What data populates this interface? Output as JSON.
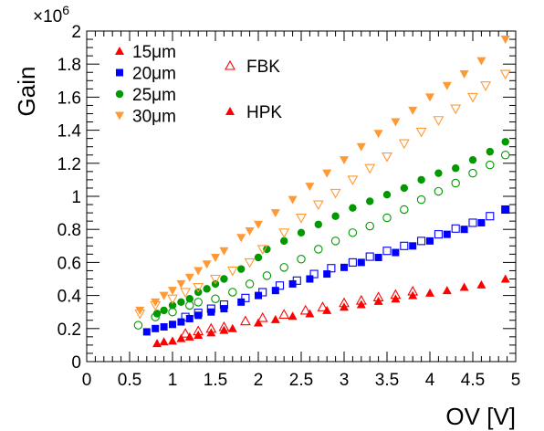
{
  "chart_data": {
    "type": "scatter",
    "xlabel": "OV [V]",
    "ylabel": "Gain",
    "y_multiplier": {
      "base": "×10",
      "exponent": "6"
    },
    "xlim": [
      0,
      5
    ],
    "ylim": [
      0,
      2
    ],
    "x_ticks": [
      "0",
      "0.5",
      "1",
      "1.5",
      "2",
      "2.5",
      "3",
      "3.5",
      "4",
      "4.5",
      "5"
    ],
    "y_ticks": [
      "0",
      "0.2",
      "0.4",
      "0.6",
      "0.8",
      "1",
      "1.2",
      "1.4",
      "1.6",
      "1.8",
      "2"
    ],
    "grid": false,
    "colors": {
      "15um": "#ff0000",
      "20um": "#0000ff",
      "25um": "#009900",
      "30um": "#ff9933"
    },
    "legend": {
      "sizes": [
        {
          "label": "15μm",
          "color": "#ff0000",
          "marker": "triangle-up"
        },
        {
          "label": "20μm",
          "color": "#0000ff",
          "marker": "square"
        },
        {
          "label": "25μm",
          "color": "#009900",
          "marker": "circle"
        },
        {
          "label": "30μm",
          "color": "#ff9933",
          "marker": "triangle-down"
        }
      ],
      "types": [
        {
          "label": "FBK",
          "fill": "open",
          "color": "#ff0000"
        },
        {
          "label": "HPK",
          "fill": "filled",
          "color": "#ff0000"
        }
      ]
    },
    "series": [
      {
        "size": "15μm",
        "vendor": "FBK",
        "marker": "triangle-up",
        "fill": "open",
        "color": "#ff0000",
        "x": [
          1.15,
          1.3,
          1.45,
          1.6,
          1.85,
          2.05,
          2.3,
          2.55,
          2.75,
          3.0,
          3.2,
          3.4,
          3.6,
          3.8
        ],
        "y": [
          0.17,
          0.185,
          0.2,
          0.21,
          0.245,
          0.265,
          0.285,
          0.31,
          0.33,
          0.355,
          0.37,
          0.39,
          0.405,
          0.425
        ]
      },
      {
        "size": "15μm",
        "vendor": "HPK",
        "marker": "triangle-up",
        "fill": "filled",
        "color": "#ff0000",
        "x": [
          0.82,
          0.9,
          1.0,
          1.1,
          1.2,
          1.3,
          1.45,
          1.6,
          1.7,
          2.0,
          2.2,
          2.4,
          2.6,
          2.8,
          3.0,
          3.2,
          3.4,
          3.6,
          3.8,
          4.0,
          4.2,
          4.4,
          4.6,
          4.88
        ],
        "y": [
          0.11,
          0.12,
          0.125,
          0.14,
          0.15,
          0.16,
          0.175,
          0.19,
          0.2,
          0.235,
          0.255,
          0.275,
          0.29,
          0.31,
          0.33,
          0.345,
          0.365,
          0.38,
          0.4,
          0.415,
          0.43,
          0.45,
          0.465,
          0.5
        ]
      },
      {
        "size": "20μm",
        "vendor": "FBK",
        "marker": "square",
        "fill": "open",
        "color": "#0000ff",
        "x": [
          1.15,
          1.3,
          1.45,
          1.6,
          1.85,
          2.05,
          2.25,
          2.45,
          2.65,
          2.85,
          3.1,
          3.3,
          3.5,
          3.7,
          3.9,
          4.1,
          4.3,
          4.5,
          4.7,
          4.88
        ],
        "y": [
          0.27,
          0.295,
          0.32,
          0.345,
          0.385,
          0.42,
          0.46,
          0.49,
          0.53,
          0.565,
          0.6,
          0.635,
          0.67,
          0.7,
          0.73,
          0.77,
          0.805,
          0.84,
          0.88,
          0.92
        ]
      },
      {
        "size": "20μm",
        "vendor": "HPK",
        "marker": "square",
        "fill": "filled",
        "color": "#0000ff",
        "x": [
          0.7,
          0.8,
          0.9,
          1.0,
          1.1,
          1.2,
          1.3,
          1.45,
          1.6,
          1.8,
          2.0,
          2.2,
          2.4,
          2.6,
          2.8,
          3.0,
          3.2,
          3.4,
          3.6,
          3.8,
          4.0,
          4.2,
          4.4,
          4.6,
          4.88
        ],
        "y": [
          0.18,
          0.2,
          0.21,
          0.225,
          0.24,
          0.26,
          0.28,
          0.3,
          0.32,
          0.36,
          0.4,
          0.43,
          0.47,
          0.5,
          0.53,
          0.57,
          0.6,
          0.63,
          0.66,
          0.7,
          0.73,
          0.77,
          0.8,
          0.84,
          0.92
        ]
      },
      {
        "size": "25μm",
        "vendor": "FBK",
        "marker": "circle",
        "fill": "open",
        "color": "#009900",
        "x": [
          0.6,
          0.8,
          1.0,
          1.2,
          1.3,
          1.5,
          1.7,
          1.9,
          2.1,
          2.3,
          2.5,
          2.7,
          2.9,
          3.1,
          3.3,
          3.5,
          3.7,
          3.9,
          4.1,
          4.3,
          4.5,
          4.7,
          4.88
        ],
        "y": [
          0.22,
          0.27,
          0.3,
          0.34,
          0.36,
          0.38,
          0.42,
          0.47,
          0.52,
          0.57,
          0.62,
          0.68,
          0.73,
          0.78,
          0.82,
          0.87,
          0.92,
          0.98,
          1.03,
          1.08,
          1.14,
          1.19,
          1.25
        ]
      },
      {
        "size": "25μm",
        "vendor": "HPK",
        "marker": "circle",
        "fill": "filled",
        "color": "#009900",
        "x": [
          0.82,
          0.9,
          1.0,
          1.1,
          1.2,
          1.3,
          1.4,
          1.5,
          1.6,
          1.8,
          2.0,
          2.1,
          2.3,
          2.5,
          2.7,
          2.9,
          3.1,
          3.3,
          3.5,
          3.7,
          3.9,
          4.1,
          4.3,
          4.5,
          4.7,
          4.88
        ],
        "y": [
          0.29,
          0.31,
          0.34,
          0.36,
          0.38,
          0.42,
          0.44,
          0.47,
          0.5,
          0.56,
          0.63,
          0.68,
          0.73,
          0.78,
          0.83,
          0.88,
          0.93,
          0.97,
          1.01,
          1.05,
          1.1,
          1.14,
          1.17,
          1.22,
          1.27,
          1.33
        ]
      },
      {
        "size": "30μm",
        "vendor": "FBK",
        "marker": "triangle-down",
        "fill": "open",
        "color": "#ff9933",
        "x": [
          0.62,
          0.8,
          1.0,
          1.15,
          1.3,
          1.5,
          1.7,
          1.9,
          2.05,
          2.3,
          2.5,
          2.7,
          2.9,
          3.1,
          3.3,
          3.5,
          3.7,
          3.9,
          4.1,
          4.3,
          4.5,
          4.65,
          4.88
        ],
        "y": [
          0.29,
          0.34,
          0.38,
          0.42,
          0.45,
          0.5,
          0.55,
          0.6,
          0.68,
          0.78,
          0.87,
          0.95,
          1.02,
          1.1,
          1.17,
          1.24,
          1.32,
          1.39,
          1.46,
          1.53,
          1.6,
          1.67,
          1.74
        ]
      },
      {
        "size": "30μm",
        "vendor": "HPK",
        "marker": "triangle-down",
        "fill": "filled",
        "color": "#ff9933",
        "x": [
          0.62,
          0.8,
          0.9,
          1.0,
          1.1,
          1.2,
          1.3,
          1.4,
          1.5,
          1.6,
          1.8,
          1.9,
          2.0,
          2.2,
          2.4,
          2.6,
          2.8,
          3.0,
          3.2,
          3.4,
          3.6,
          3.8,
          4.0,
          4.2,
          4.4,
          4.6,
          4.88
        ],
        "y": [
          0.31,
          0.36,
          0.4,
          0.43,
          0.47,
          0.51,
          0.55,
          0.59,
          0.63,
          0.67,
          0.75,
          0.79,
          0.83,
          0.9,
          0.98,
          1.06,
          1.14,
          1.22,
          1.3,
          1.38,
          1.45,
          1.52,
          1.6,
          1.67,
          1.74,
          1.82,
          1.95
        ]
      }
    ]
  }
}
